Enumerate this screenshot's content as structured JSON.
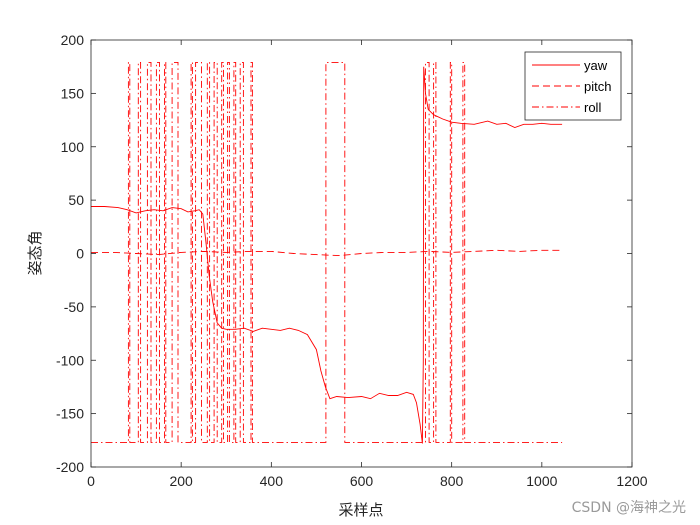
{
  "chart_data": {
    "type": "line",
    "title": "",
    "xlabel": "采样点",
    "ylabel": "姿态角",
    "xlim": [
      0,
      1200
    ],
    "ylim": [
      -200,
      200
    ],
    "xticks": [
      "0",
      "200",
      "400",
      "600",
      "800",
      "1000",
      "1200"
    ],
    "yticks": [
      "200",
      "150",
      "100",
      "50",
      "0",
      "-50",
      "-100",
      "-150",
      "-200"
    ],
    "grid": false,
    "legend_position": "top-right",
    "series": [
      {
        "name": "yaw",
        "style": "solid",
        "color": "#ff0000",
        "points": [
          [
            0,
            44
          ],
          [
            30,
            44
          ],
          [
            60,
            43
          ],
          [
            80,
            41
          ],
          [
            100,
            38
          ],
          [
            120,
            40
          ],
          [
            140,
            41
          ],
          [
            160,
            40
          ],
          [
            180,
            43
          ],
          [
            200,
            42
          ],
          [
            215,
            39
          ],
          [
            230,
            40
          ],
          [
            240,
            41
          ],
          [
            248,
            37
          ],
          [
            255,
            10
          ],
          [
            262,
            -20
          ],
          [
            270,
            -45
          ],
          [
            280,
            -65
          ],
          [
            290,
            -70
          ],
          [
            300,
            -71
          ],
          [
            320,
            -71
          ],
          [
            340,
            -70
          ],
          [
            360,
            -73
          ],
          [
            380,
            -70
          ],
          [
            400,
            -71
          ],
          [
            420,
            -72
          ],
          [
            440,
            -70
          ],
          [
            460,
            -72
          ],
          [
            480,
            -76
          ],
          [
            500,
            -90
          ],
          [
            510,
            -110
          ],
          [
            520,
            -125
          ],
          [
            530,
            -136
          ],
          [
            545,
            -134
          ],
          [
            570,
            -135
          ],
          [
            600,
            -134
          ],
          [
            620,
            -136
          ],
          [
            640,
            -131
          ],
          [
            660,
            -133
          ],
          [
            680,
            -133
          ],
          [
            700,
            -130
          ],
          [
            715,
            -132
          ],
          [
            722,
            -140
          ],
          [
            730,
            -160
          ],
          [
            735,
            -178
          ],
          [
            737,
            -100
          ],
          [
            738,
            175
          ],
          [
            742,
            150
          ],
          [
            748,
            135
          ],
          [
            760,
            130
          ],
          [
            780,
            126
          ],
          [
            800,
            123
          ],
          [
            820,
            122
          ],
          [
            850,
            121
          ],
          [
            880,
            124
          ],
          [
            900,
            121
          ],
          [
            920,
            122
          ],
          [
            940,
            118
          ],
          [
            960,
            121
          ],
          [
            980,
            121
          ],
          [
            1000,
            122
          ],
          [
            1020,
            121
          ],
          [
            1045,
            121
          ]
        ]
      },
      {
        "name": "pitch",
        "style": "dashed",
        "color": "#ff0000",
        "points": [
          [
            0,
            1
          ],
          [
            50,
            1
          ],
          [
            100,
            0
          ],
          [
            150,
            -1
          ],
          [
            200,
            1
          ],
          [
            250,
            2
          ],
          [
            300,
            1
          ],
          [
            350,
            2
          ],
          [
            400,
            2
          ],
          [
            450,
            0
          ],
          [
            500,
            -1
          ],
          [
            550,
            -2
          ],
          [
            600,
            0
          ],
          [
            650,
            1
          ],
          [
            700,
            1
          ],
          [
            750,
            2
          ],
          [
            800,
            1
          ],
          [
            850,
            2
          ],
          [
            900,
            3
          ],
          [
            950,
            2
          ],
          [
            1000,
            3
          ],
          [
            1045,
            3
          ]
        ]
      },
      {
        "name": "roll",
        "style": "dashdot",
        "color": "#ff0000",
        "base": -177,
        "top": 179,
        "transitions": [
          83,
          86,
          105,
          110,
          125,
          133,
          145,
          152,
          163,
          166,
          180,
          193,
          222,
          225,
          232,
          245,
          258,
          263,
          273,
          280,
          290,
          294,
          303,
          307,
          317,
          321,
          331,
          338,
          355,
          358,
          521,
          563,
          742,
          750,
          760,
          765,
          797,
          800,
          825,
          829
        ]
      }
    ]
  },
  "watermark": "CSDN @海神之光"
}
